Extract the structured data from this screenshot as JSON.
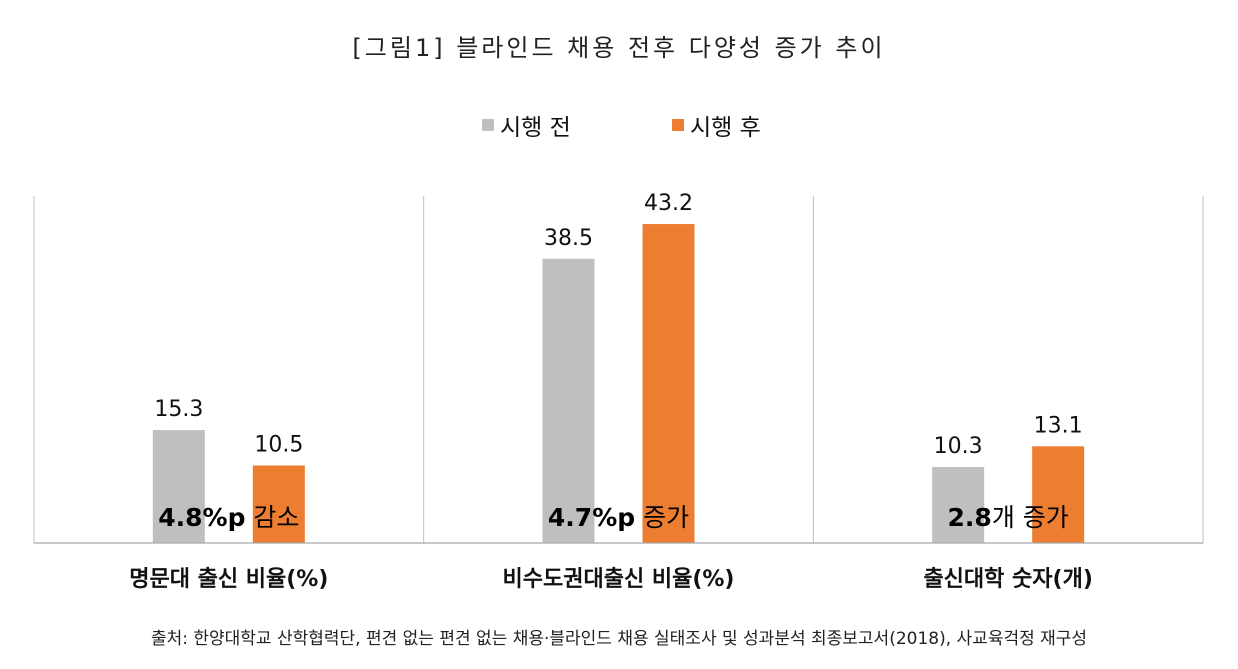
{
  "title": "[그림1] 블라인드 채용 전후 다양성 증가 추이",
  "source": "출처: 한양대학교 산학협력단, 편견 없는 편견 없는 채용·블라인드 채용 실태조사 및 성과분석 최종보고서(2018), 사교육걱정 재구성",
  "colors": {
    "before": "#BFBFBF",
    "after": "#ED7D31",
    "axis": "#A6A6A6",
    "divider": "#BFBFBF"
  },
  "chart_data": {
    "type": "bar",
    "title": "[그림1] 블라인드 채용 전후 다양성 증가 추이",
    "categories": [
      "명문대 출신 비율(%)",
      "비수도권대출신 비율(%)",
      "출신대학 숫자(개)"
    ],
    "series": [
      {
        "name": "시행 전",
        "values": [
          15.3,
          38.5,
          10.3
        ]
      },
      {
        "name": "시행 후",
        "values": [
          10.5,
          43.2,
          13.1
        ]
      }
    ],
    "data_labels": [
      [
        "15.3",
        "38.5",
        "10.3"
      ],
      [
        "10.5",
        "43.2",
        "13.1"
      ]
    ],
    "annotations": [
      {
        "bold": "4.8%p",
        "text": " 감소"
      },
      {
        "bold": "4.7%p",
        "text": " 증가"
      },
      {
        "bold": "2.8",
        "text": "개 증가"
      }
    ],
    "ylim": [
      0,
      47
    ],
    "grid": false,
    "legend": "top-center"
  }
}
